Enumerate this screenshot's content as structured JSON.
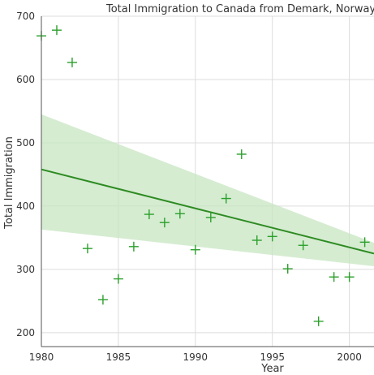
{
  "chart_data": {
    "type": "scatter",
    "title": "Total Immigration to Canada from Demark, Norway, Sw",
    "xlabel": "Year",
    "ylabel": "Total Immigration",
    "xlim": [
      1980,
      2001.6
    ],
    "ylim": [
      178,
      700
    ],
    "x_ticks": [
      1980,
      1985,
      1990,
      1995,
      2000
    ],
    "y_ticks": [
      200,
      300,
      400,
      500,
      600,
      700
    ],
    "grid": true,
    "legend": "none",
    "series": [
      {
        "marker": "plus",
        "x": [
          1980,
          1981,
          1982,
          1983,
          1984,
          1985,
          1986,
          1987,
          1988,
          1989,
          1990,
          1991,
          1992,
          1993,
          1994,
          1995,
          1996,
          1997,
          1998,
          1999,
          2000,
          2001
        ],
        "y": [
          669,
          678,
          627,
          333,
          252,
          285,
          336,
          387,
          374,
          388,
          331,
          382,
          412,
          482,
          346,
          352,
          301,
          338,
          218,
          288,
          288,
          343
        ]
      }
    ],
    "regression": {
      "x": [
        1980,
        2001.6
      ],
      "y": [
        458,
        325
      ],
      "ci_lower": [
        363,
        305
      ],
      "ci_upper": [
        545,
        342
      ]
    },
    "colors": {
      "marker": "#2ca02c",
      "line": "#2e8b22",
      "band": "#c7e6c2",
      "grid": "#dcdcdc",
      "axis": "#555555"
    }
  }
}
